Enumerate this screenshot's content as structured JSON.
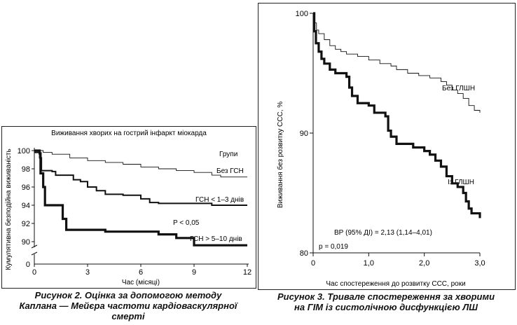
{
  "figure2": {
    "caption_lines": [
      "Рисунок 2. Оцінка за допомогою методу",
      "Каплана — Мейєра частоти кардіоваскулярної",
      "смерті"
    ]
  },
  "figure3": {
    "caption_lines": [
      "Рисунок 3. Тривале спостереження за хворими",
      "на ГІМ із систолічною дисфункцією ЛШ"
    ]
  },
  "chart_data": [
    {
      "type": "line",
      "title": "Виживання хворих на гострий інфаркт міокарда",
      "xlabel": "Час (місяці)",
      "ylabel": "Кумулятивна безподійна виживаність",
      "xlim": [
        0,
        12
      ],
      "ylim": [
        89,
        100
      ],
      "y_axis_break": true,
      "x_ticks": [
        0,
        3,
        6,
        9,
        12
      ],
      "y_ticks": [
        90,
        92,
        94,
        96,
        98,
        100
      ],
      "y_ticks_extra": [
        0
      ],
      "legend_title": "Групи",
      "annotation": "P < 0,05",
      "grid": false,
      "series": [
        {
          "name": "Без ГСН",
          "line": "thin",
          "points": [
            [
              0,
              100
            ],
            [
              0.5,
              99.8
            ],
            [
              1,
              99.6
            ],
            [
              2,
              99.2
            ],
            [
              3,
              98.9
            ],
            [
              4,
              98.7
            ],
            [
              5,
              98.5
            ],
            [
              6,
              98.2
            ],
            [
              7,
              98.0
            ],
            [
              8,
              97.8
            ],
            [
              9,
              97.6
            ],
            [
              10,
              97.3
            ],
            [
              10.5,
              97.1
            ],
            [
              12,
              97.1
            ]
          ]
        },
        {
          "name": "ГСН < 1–3 днів",
          "line": "medium",
          "points": [
            [
              0,
              99.8
            ],
            [
              0.3,
              99.2
            ],
            [
              0.4,
              97.8
            ],
            [
              1,
              97.7
            ],
            [
              1.2,
              97.3
            ],
            [
              2,
              97.3
            ],
            [
              2.2,
              96.8
            ],
            [
              2.6,
              96.6
            ],
            [
              3,
              96.0
            ],
            [
              3.5,
              95.6
            ],
            [
              4,
              95.2
            ],
            [
              5,
              95.1
            ],
            [
              6,
              94.7
            ],
            [
              6.5,
              94.3
            ],
            [
              7,
              94.2
            ],
            [
              10,
              94.0
            ],
            [
              12,
              94.0
            ]
          ]
        },
        {
          "name": "ГСН > 5–10 днів",
          "line": "thick",
          "points": [
            [
              0,
              100
            ],
            [
              0.3,
              99.7
            ],
            [
              0.35,
              97.5
            ],
            [
              0.5,
              96.0
            ],
            [
              0.6,
              94.0
            ],
            [
              1.3,
              94.0
            ],
            [
              1.6,
              92.5
            ],
            [
              1.8,
              91.3
            ],
            [
              2.5,
              91.3
            ],
            [
              4,
              91.1
            ],
            [
              5,
              91.1
            ],
            [
              7,
              90.8
            ],
            [
              8,
              90.4
            ],
            [
              9,
              89.6
            ],
            [
              12,
              89.6
            ]
          ]
        }
      ]
    },
    {
      "type": "line",
      "title": "",
      "xlabel": "Час спостереження до розвитку ССС, роки",
      "ylabel": "Виживання без розвитку ССС, %",
      "xlim": [
        0,
        3
      ],
      "ylim": [
        80,
        100
      ],
      "x_ticks": [
        "0",
        "1,0",
        "2,0",
        "3,0"
      ],
      "x_tick_values": [
        0,
        1,
        2,
        3
      ],
      "y_ticks": [
        80,
        90,
        100
      ],
      "annotations": [
        "ВР (95% ДІ) = 2,13 (1,14–4,01)",
        "p = 0,019"
      ],
      "grid": false,
      "series": [
        {
          "name": "Без ГЛШН",
          "line": "thin",
          "points": [
            [
              0,
              100
            ],
            [
              0.02,
              99.2
            ],
            [
              0.06,
              98.6
            ],
            [
              0.1,
              98.3
            ],
            [
              0.2,
              97.8
            ],
            [
              0.3,
              97.3
            ],
            [
              0.4,
              97.0
            ],
            [
              0.5,
              96.8
            ],
            [
              0.6,
              96.6
            ],
            [
              0.8,
              96.4
            ],
            [
              1.0,
              96.1
            ],
            [
              1.2,
              95.8
            ],
            [
              1.4,
              95.6
            ],
            [
              1.5,
              95.3
            ],
            [
              1.7,
              95.0
            ],
            [
              1.9,
              94.8
            ],
            [
              2.1,
              94.6
            ],
            [
              2.3,
              94.3
            ],
            [
              2.4,
              94.0
            ],
            [
              2.5,
              93.6
            ],
            [
              2.6,
              93.3
            ],
            [
              2.7,
              92.9
            ],
            [
              2.8,
              92.3
            ],
            [
              2.9,
              91.9
            ],
            [
              3.0,
              91.7
            ]
          ]
        },
        {
          "name": "Із ГЛШН",
          "line": "thick",
          "points": [
            [
              0,
              100
            ],
            [
              0.02,
              98.5
            ],
            [
              0.05,
              97.5
            ],
            [
              0.1,
              96.8
            ],
            [
              0.15,
              96.2
            ],
            [
              0.2,
              95.8
            ],
            [
              0.3,
              95.3
            ],
            [
              0.4,
              95.0
            ],
            [
              0.6,
              94.7
            ],
            [
              0.65,
              93.8
            ],
            [
              0.7,
              93.1
            ],
            [
              0.8,
              92.5
            ],
            [
              1.0,
              92.3
            ],
            [
              1.1,
              91.7
            ],
            [
              1.3,
              91.4
            ],
            [
              1.35,
              90.2
            ],
            [
              1.4,
              89.7
            ],
            [
              1.5,
              89.1
            ],
            [
              1.8,
              88.8
            ],
            [
              2.0,
              88.5
            ],
            [
              2.1,
              88.2
            ],
            [
              2.2,
              87.7
            ],
            [
              2.3,
              87.2
            ],
            [
              2.4,
              86.4
            ],
            [
              2.5,
              85.8
            ],
            [
              2.6,
              85.5
            ],
            [
              2.7,
              85.0
            ],
            [
              2.75,
              84.3
            ],
            [
              2.8,
              83.7
            ],
            [
              2.85,
              83.3
            ],
            [
              2.95,
              83.3
            ],
            [
              3.0,
              82.9
            ]
          ]
        }
      ]
    }
  ]
}
